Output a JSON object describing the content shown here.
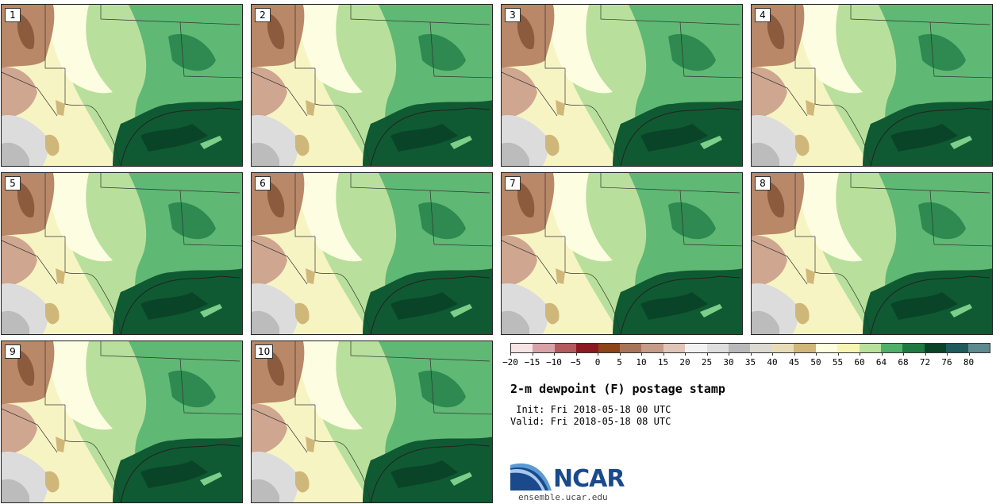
{
  "panels": [
    {
      "label": "1"
    },
    {
      "label": "2"
    },
    {
      "label": "3"
    },
    {
      "label": "4"
    },
    {
      "label": "5"
    },
    {
      "label": "6"
    },
    {
      "label": "7"
    },
    {
      "label": "8"
    },
    {
      "label": "9"
    },
    {
      "label": "10"
    }
  ],
  "colorbar": {
    "colors": [
      "#f6e4e4",
      "#d8a3a6",
      "#b35a5e",
      "#8b1a22",
      "#8c4418",
      "#a8755a",
      "#c49c88",
      "#dfc6b8",
      "#f2f2f2",
      "#dedede",
      "#b9b9b9",
      "#dadad0",
      "#e8dcb8",
      "#cfb779",
      "#fdfde0",
      "#f6f6b2",
      "#b6e29c",
      "#4fb06a",
      "#1f7a42",
      "#0a4428",
      "#1f5b5c",
      "#5d8a8d"
    ],
    "labels": [
      "−20",
      "−15",
      "−10",
      "−5",
      "0",
      "5",
      "10",
      "15",
      "20",
      "25",
      "30",
      "35",
      "40",
      "45",
      "50",
      "55",
      "60",
      "64",
      "68",
      "72",
      "76",
      "80"
    ]
  },
  "title": "2-m dewpoint (F) postage stamp",
  "init": " Init: Fri 2018-05-18 00 UTC",
  "valid": "Valid: Fri 2018-05-18 08 UTC",
  "logo": {
    "name": "NCAR",
    "url": "ensemble.ucar.edu"
  }
}
